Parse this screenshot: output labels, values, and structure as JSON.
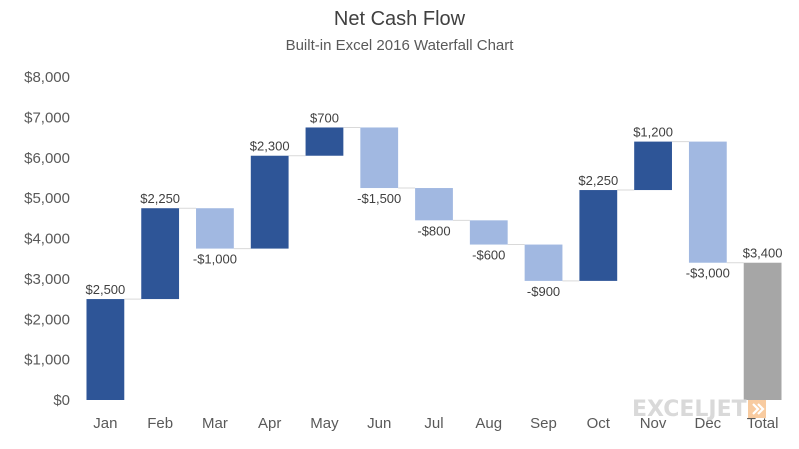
{
  "chart_data": {
    "type": "waterfall",
    "title": "Net Cash Flow",
    "subtitle": "Built-in Excel 2016 Waterfall Chart",
    "categories": [
      "Jan",
      "Feb",
      "Mar",
      "Apr",
      "May",
      "Jun",
      "Jul",
      "Aug",
      "Sep",
      "Oct",
      "Nov",
      "Dec",
      "Total"
    ],
    "values": [
      2500,
      2250,
      -1000,
      2300,
      700,
      -1500,
      -800,
      -600,
      -900,
      2250,
      1200,
      -3000,
      3400
    ],
    "labels": [
      "$2,500",
      "$2,250",
      "-$1,000",
      "$2,300",
      "$700",
      "-$1,500",
      "-$800",
      "-$600",
      "-$900",
      "$2,250",
      "$1,200",
      "-$3,000",
      "$3,400"
    ],
    "is_total": [
      false,
      false,
      false,
      false,
      false,
      false,
      false,
      false,
      false,
      false,
      false,
      false,
      true
    ],
    "ylim": [
      0,
      8000
    ],
    "yticks": [
      0,
      1000,
      2000,
      3000,
      4000,
      5000,
      6000,
      7000,
      8000
    ],
    "ytick_labels": [
      "$0",
      "$1,000",
      "$2,000",
      "$3,000",
      "$4,000",
      "$5,000",
      "$6,000",
      "$7,000",
      "$8,000"
    ],
    "xlabel": "",
    "ylabel": "",
    "grid": false,
    "legend": "none",
    "colors": {
      "increase": "#2e5597",
      "decrease": "#a1b8e1",
      "total": "#a6a6a6",
      "connector": "#d9d9d9",
      "axis_text": "#595959",
      "label_text": "#404040"
    }
  },
  "watermark": {
    "text": "EXCELJET",
    "icon": "exceljet-logo-icon"
  }
}
